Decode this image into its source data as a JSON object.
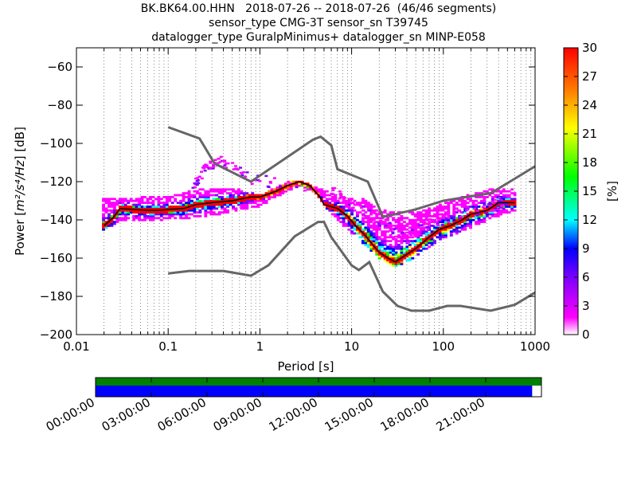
{
  "chart_data": {
    "type": "heatmap",
    "title_lines": [
      "BK.BK64.00.HHN   2018-07-26 -- 2018-07-26  (46/46 segments)",
      "sensor_type CMG-3T sensor_sn T39745",
      "datalogger_type GuralpMinimus+ datalogger_sn MINP-E058"
    ],
    "xlabel": "Period [s]",
    "ylabel_prefix": "Power [",
    "ylabel_units": "m²/s⁴/Hz",
    "ylabel_suffix": "] [dB]",
    "x_scale": "log",
    "xlim": [
      0.01,
      1000
    ],
    "ylim": [
      -200,
      -50
    ],
    "x_ticks": [
      {
        "value": 0.01,
        "label": "0.01"
      },
      {
        "value": 0.1,
        "label": "0.1"
      },
      {
        "value": 1,
        "label": "1"
      },
      {
        "value": 10,
        "label": "10"
      },
      {
        "value": 100,
        "label": "100"
      },
      {
        "value": 1000,
        "label": "1000"
      }
    ],
    "y_ticks": [
      {
        "value": -60,
        "label": "−60"
      },
      {
        "value": -80,
        "label": "−80"
      },
      {
        "value": -100,
        "label": "−100"
      },
      {
        "value": -120,
        "label": "−120"
      },
      {
        "value": -140,
        "label": "−140"
      },
      {
        "value": -160,
        "label": "−160"
      },
      {
        "value": -180,
        "label": "−180"
      },
      {
        "value": -200,
        "label": "−200"
      }
    ],
    "grid": "dotted vertical",
    "colorbar": {
      "label": "[%]",
      "range": [
        0,
        30
      ],
      "ticks": [
        "0",
        "3",
        "6",
        "9",
        "12",
        "15",
        "18",
        "21",
        "24",
        "27",
        "30"
      ],
      "colormap": [
        "#ffffff",
        "#ff00ff",
        "#7a00ff",
        "#0000ff",
        "#00ffff",
        "#00ff00",
        "#ffff00",
        "#ff7f00",
        "#ff0000"
      ]
    },
    "nhnm": [
      [
        0.1,
        -91.5
      ],
      [
        0.22,
        -97.4
      ],
      [
        0.32,
        -110.5
      ],
      [
        0.8,
        -120
      ],
      [
        3.8,
        -98
      ],
      [
        4.6,
        -96.5
      ],
      [
        6,
        -101
      ],
      [
        7,
        -113.5
      ],
      [
        10,
        -116.5
      ],
      [
        15,
        -120
      ],
      [
        22,
        -138.5
      ],
      [
        30,
        -137
      ],
      [
        50,
        -134.5
      ],
      [
        100,
        -130
      ],
      [
        330,
        -126
      ],
      [
        600,
        -118.5
      ],
      [
        1000,
        -112
      ]
    ],
    "nlnm": [
      [
        0.1,
        -168
      ],
      [
        0.17,
        -166.7
      ],
      [
        0.4,
        -166.7
      ],
      [
        0.8,
        -169.2
      ],
      [
        1.24,
        -163.7
      ],
      [
        2.4,
        -148.6
      ],
      [
        4.3,
        -141.1
      ],
      [
        5,
        -141.1
      ],
      [
        6,
        -149
      ],
      [
        10,
        -163.8
      ],
      [
        12,
        -166.2
      ],
      [
        15.6,
        -162.1
      ],
      [
        21.9,
        -177.5
      ],
      [
        31.6,
        -185
      ],
      [
        45,
        -187.5
      ],
      [
        70,
        -187.5
      ],
      [
        110,
        -185
      ],
      [
        154,
        -185
      ],
      [
        328,
        -187.5
      ],
      [
        600,
        -184.4
      ],
      [
        1000,
        -178
      ]
    ],
    "mode_line": [
      [
        0.02,
        -143
      ],
      [
        0.025,
        -139
      ],
      [
        0.03,
        -134
      ],
      [
        0.04,
        -134.5
      ],
      [
        0.06,
        -135
      ],
      [
        0.08,
        -135
      ],
      [
        0.1,
        -134.5
      ],
      [
        0.15,
        -134
      ],
      [
        0.2,
        -132
      ],
      [
        0.3,
        -131
      ],
      [
        0.5,
        -130
      ],
      [
        0.8,
        -128
      ],
      [
        1,
        -128
      ],
      [
        1.5,
        -125
      ],
      [
        2,
        -122
      ],
      [
        2.7,
        -120
      ],
      [
        3.5,
        -122
      ],
      [
        4.5,
        -128
      ],
      [
        5,
        -132
      ],
      [
        7,
        -134
      ],
      [
        9,
        -138
      ],
      [
        11,
        -143
      ],
      [
        14,
        -148
      ],
      [
        17,
        -153
      ],
      [
        20,
        -157
      ],
      [
        25,
        -160
      ],
      [
        30,
        -162
      ],
      [
        40,
        -158
      ],
      [
        50,
        -155
      ],
      [
        70,
        -149
      ],
      [
        90,
        -145
      ],
      [
        120,
        -143
      ],
      [
        160,
        -140
      ],
      [
        200,
        -137
      ],
      [
        300,
        -135
      ],
      [
        400,
        -131
      ],
      [
        600,
        -131
      ]
    ],
    "envelope_high": [
      [
        0.02,
        -129
      ],
      [
        0.05,
        -128
      ],
      [
        0.1,
        -128
      ],
      [
        0.2,
        -124
      ],
      [
        0.5,
        -123
      ],
      [
        1,
        -127
      ],
      [
        2,
        -120
      ],
      [
        2.7,
        -119
      ],
      [
        4,
        -122
      ],
      [
        6,
        -126
      ],
      [
        10,
        -128
      ],
      [
        15,
        -129
      ],
      [
        20,
        -134
      ],
      [
        30,
        -136
      ],
      [
        60,
        -135
      ],
      [
        100,
        -131
      ],
      [
        200,
        -126
      ],
      [
        300,
        -124
      ],
      [
        500,
        -123
      ],
      [
        600,
        -124
      ]
    ],
    "envelope_low": [
      [
        0.02,
        -145
      ],
      [
        0.03,
        -141
      ],
      [
        0.05,
        -140
      ],
      [
        0.1,
        -140
      ],
      [
        0.2,
        -139
      ],
      [
        0.5,
        -136
      ],
      [
        1,
        -133
      ],
      [
        2,
        -125
      ],
      [
        2.7,
        -122
      ],
      [
        4,
        -126
      ],
      [
        6,
        -137
      ],
      [
        10,
        -147
      ],
      [
        15,
        -155
      ],
      [
        20,
        -160
      ],
      [
        30,
        -165
      ],
      [
        40,
        -163
      ],
      [
        60,
        -156
      ],
      [
        100,
        -150
      ],
      [
        200,
        -144
      ],
      [
        400,
        -138
      ],
      [
        600,
        -135
      ]
    ],
    "scatter_band": [
      [
        0.17,
        -122
      ],
      [
        0.22,
        -116
      ],
      [
        0.27,
        -111
      ],
      [
        0.35,
        -109
      ],
      [
        0.5,
        -113
      ],
      [
        0.8,
        -118
      ],
      [
        6,
        -125
      ],
      [
        10,
        -132
      ],
      [
        20,
        -140
      ],
      [
        30,
        -146
      ],
      [
        40,
        -149
      ],
      [
        60,
        -142
      ],
      [
        100,
        -140
      ],
      [
        150,
        -137
      ],
      [
        300,
        -133
      ],
      [
        500,
        -129
      ]
    ],
    "time_axis": {
      "ticks": [
        "00:00:00",
        "03:00:00",
        "06:00:00",
        "09:00:00",
        "12:00:00",
        "15:00:00",
        "18:00:00",
        "21:00:00"
      ],
      "range_hours": [
        0,
        24
      ],
      "coverage_end_hours": 23.5,
      "bar_colors": {
        "top": "#008000",
        "bottom": "#0000ff"
      }
    }
  }
}
